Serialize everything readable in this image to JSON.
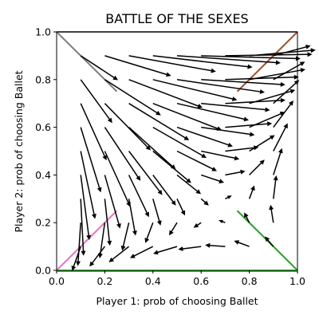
{
  "chart_data": {
    "type": "quiver",
    "title": "BATTLE OF THE SEXES",
    "xlabel": "Player 1: prob of choosing Ballet",
    "ylabel": "Player 2: prob of choosing Ballet",
    "xlim": [
      0,
      1
    ],
    "ylim": [
      0,
      1
    ],
    "grid": false,
    "xticks": [
      0.0,
      0.2,
      0.4,
      0.6,
      0.8,
      1.0
    ],
    "yticks": [
      0.0,
      0.2,
      0.4,
      0.6,
      0.8,
      1.0
    ],
    "xtick_labels": [
      "0.0",
      "0.2",
      "0.4",
      "0.6",
      "0.8",
      "1.0"
    ],
    "ytick_labels": [
      "0.0",
      "0.2",
      "0.4",
      "0.6",
      "0.8",
      "1.0"
    ],
    "arrow_color": "#000000",
    "arrow_grid_x": [
      0.1,
      0.2,
      0.3,
      0.4,
      0.5,
      0.6,
      0.7,
      0.8,
      0.9
    ],
    "arrow_grid_y": [
      0.1,
      0.2,
      0.3,
      0.4,
      0.5,
      0.6,
      0.7,
      0.8,
      0.9
    ],
    "lines": [
      {
        "color": "#7f7f7f",
        "x": [
          0.0,
          1.0
        ],
        "y": [
          1.0,
          1.0
        ]
      },
      {
        "color": "#7f7f7f",
        "x": [
          0.0,
          0.25
        ],
        "y": [
          1.0,
          0.75
        ]
      },
      {
        "color": "#a0522d",
        "x": [
          0.75,
          1.0
        ],
        "y": [
          0.75,
          1.0
        ]
      },
      {
        "color": "#e377c2",
        "x": [
          0.0,
          0.25
        ],
        "y": [
          0.0,
          0.25
        ]
      },
      {
        "color": "#2ca02c",
        "x": [
          0.0,
          1.0
        ],
        "y": [
          0.0,
          0.0
        ]
      },
      {
        "color": "#2ca02c",
        "x": [
          0.75,
          1.0
        ],
        "y": [
          0.25,
          0.0
        ]
      }
    ]
  }
}
